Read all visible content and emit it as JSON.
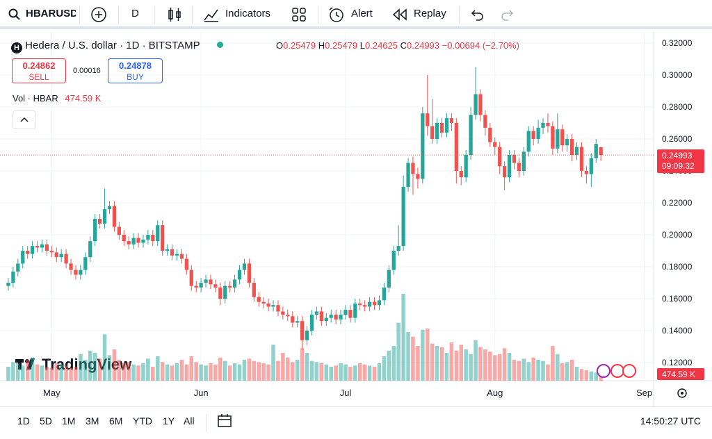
{
  "toolbar": {
    "symbol": "HBARUSD",
    "interval": "D",
    "indicators": "Indicators",
    "alert": "Alert",
    "replay": "Replay"
  },
  "legend": {
    "title": "Hedera / U.S. dollar · 1D · BITSTAMP",
    "o": "O",
    "h": "H",
    "l": "L",
    "c": "C",
    "change": "−0.00694 (−2.70%)"
  },
  "trade": {
    "sell_price": "0.24862",
    "sell": "SELL",
    "spread": "0.00016",
    "buy_price": "0.24878",
    "buy": "BUY"
  },
  "countdown": "09:09:32",
  "watermark": "TradingView",
  "ranges": [
    "1D",
    "5D",
    "1M",
    "3M",
    "6M",
    "YTD",
    "1Y",
    "All"
  ],
  "clock": "14:50:27 UTC",
  "chart_data": {
    "type": "candlestick",
    "up_color": "#26a69a",
    "down_color": "#ef5350",
    "grid": true,
    "ylim": [
      0.1087,
      0.3274
    ],
    "yticks": [
      {
        "value": 0.12,
        "label": "0.12000"
      },
      {
        "value": 0.14,
        "label": "0.14000"
      },
      {
        "value": 0.16,
        "label": "0.16000"
      },
      {
        "value": 0.18,
        "label": "0.18000"
      },
      {
        "value": 0.2,
        "label": "0.20000"
      },
      {
        "value": 0.22,
        "label": "0.22000"
      },
      {
        "value": 0.24,
        "label": "0.24000"
      },
      {
        "value": 0.26,
        "label": "0.26000"
      },
      {
        "value": 0.28,
        "label": "0.28000"
      },
      {
        "value": 0.3,
        "label": "0.30000"
      },
      {
        "value": 0.32,
        "label": "0.32000"
      }
    ],
    "categories": [
      null,
      null,
      null,
      null,
      null,
      null,
      null,
      null,
      null,
      "May",
      null,
      null,
      null,
      null,
      null,
      null,
      null,
      null,
      null,
      null,
      null,
      null,
      null,
      null,
      null,
      null,
      null,
      null,
      null,
      null,
      null,
      null,
      null,
      null,
      null,
      null,
      null,
      null,
      null,
      null,
      "Jun",
      null,
      null,
      null,
      null,
      null,
      null,
      null,
      null,
      null,
      null,
      null,
      null,
      null,
      null,
      null,
      null,
      null,
      null,
      null,
      null,
      null,
      null,
      null,
      null,
      null,
      null,
      null,
      null,
      null,
      "Jul",
      null,
      null,
      null,
      null,
      null,
      null,
      null,
      null,
      null,
      null,
      null,
      null,
      null,
      null,
      null,
      null,
      null,
      null,
      null,
      null,
      null,
      null,
      null,
      null,
      null,
      null,
      null,
      null,
      null,
      null,
      "Aug",
      null,
      null,
      null,
      null,
      null,
      null,
      null,
      null,
      null,
      null,
      null,
      null,
      null,
      null,
      null,
      null,
      null,
      null,
      null,
      null,
      null,
      null,
      null,
      null,
      null,
      null,
      null,
      null,
      null,
      null,
      "Sep"
    ],
    "open": [
      0.168,
      0.17,
      0.177,
      0.182,
      0.19,
      0.188,
      0.193,
      0.192,
      0.194,
      0.19,
      0.189,
      0.186,
      0.188,
      0.182,
      0.178,
      0.175,
      0.178,
      0.186,
      0.196,
      0.21,
      0.207,
      0.216,
      0.218,
      0.205,
      0.2,
      0.196,
      0.194,
      0.198,
      0.195,
      0.197,
      0.2,
      0.196,
      0.206,
      0.19,
      0.191,
      0.187,
      0.188,
      0.185,
      0.178,
      0.168,
      0.167,
      0.17,
      0.172,
      0.169,
      0.167,
      0.16,
      0.168,
      0.167,
      0.172,
      0.178,
      0.182,
      0.17,
      0.161,
      0.158,
      0.157,
      0.155,
      0.156,
      0.152,
      0.15,
      0.149,
      0.145,
      0.146,
      0.134,
      0.14,
      0.15,
      0.152,
      0.146,
      0.148,
      0.15,
      0.147,
      0.15,
      0.153,
      0.148,
      0.157,
      0.156,
      0.155,
      0.158,
      0.156,
      0.159,
      0.167,
      0.178,
      0.19,
      0.193,
      0.23,
      0.245,
      0.238,
      0.235,
      0.276,
      0.268,
      0.26,
      0.27,
      0.264,
      0.273,
      0.27,
      0.24,
      0.236,
      0.25,
      0.275,
      0.288,
      0.275,
      0.267,
      0.258,
      0.255,
      0.243,
      0.236,
      0.25,
      0.245,
      0.24,
      0.252,
      0.265,
      0.26,
      0.267,
      0.27,
      0.268,
      0.254,
      0.266,
      0.256,
      0.26,
      0.25,
      0.255,
      0.24,
      0.238,
      0.248,
      0.25479,
      null,
      null,
      null,
      null,
      null,
      null,
      null,
      null,
      null
    ],
    "high": [
      0.173,
      0.18,
      0.185,
      0.193,
      0.193,
      0.196,
      0.196,
      0.197,
      0.197,
      0.193,
      0.192,
      0.191,
      0.191,
      0.185,
      0.181,
      0.181,
      0.189,
      0.199,
      0.213,
      0.213,
      0.229,
      0.221,
      0.221,
      0.208,
      0.203,
      0.199,
      0.201,
      0.201,
      0.2,
      0.203,
      0.203,
      0.209,
      0.209,
      0.194,
      0.194,
      0.191,
      0.191,
      0.188,
      0.181,
      0.171,
      0.173,
      0.175,
      0.175,
      0.172,
      0.17,
      0.171,
      0.171,
      0.175,
      0.181,
      0.185,
      0.185,
      0.173,
      0.164,
      0.161,
      0.16,
      0.159,
      0.159,
      0.155,
      0.153,
      0.152,
      0.149,
      0.149,
      0.143,
      0.153,
      0.155,
      0.155,
      0.151,
      0.153,
      0.153,
      0.153,
      0.156,
      0.156,
      0.16,
      0.16,
      0.159,
      0.161,
      0.161,
      0.162,
      0.17,
      0.181,
      0.193,
      0.206,
      0.237,
      0.248,
      0.249,
      0.242,
      0.28,
      0.3,
      0.285,
      0.273,
      0.273,
      0.276,
      0.276,
      0.273,
      0.243,
      0.253,
      0.28,
      0.305,
      0.291,
      0.278,
      0.27,
      0.261,
      0.258,
      0.246,
      0.253,
      0.253,
      0.248,
      0.255,
      0.268,
      0.268,
      0.272,
      0.273,
      0.276,
      0.271,
      0.276,
      0.269,
      0.263,
      0.263,
      0.258,
      0.258,
      0.243,
      0.251,
      0.26,
      0.25479,
      null,
      null,
      null,
      null,
      null,
      null,
      null,
      null,
      null
    ],
    "low": [
      0.165,
      0.167,
      0.174,
      0.179,
      0.185,
      0.185,
      0.189,
      0.189,
      0.187,
      0.186,
      0.183,
      0.183,
      0.179,
      0.175,
      0.172,
      0.172,
      0.175,
      0.183,
      0.193,
      0.204,
      0.204,
      0.213,
      0.202,
      0.197,
      0.193,
      0.191,
      0.191,
      0.192,
      0.192,
      0.194,
      0.193,
      0.193,
      0.187,
      0.187,
      0.184,
      0.184,
      0.182,
      0.175,
      0.165,
      0.164,
      0.164,
      0.167,
      0.166,
      0.164,
      0.156,
      0.157,
      0.164,
      0.164,
      0.169,
      0.175,
      0.167,
      0.158,
      0.155,
      0.154,
      0.152,
      0.152,
      0.149,
      0.147,
      0.146,
      0.142,
      0.142,
      0.128,
      0.131,
      0.137,
      0.147,
      0.143,
      0.143,
      0.145,
      0.144,
      0.144,
      0.147,
      0.145,
      0.145,
      0.153,
      0.152,
      0.152,
      0.153,
      0.153,
      0.156,
      0.164,
      0.175,
      0.187,
      0.19,
      0.227,
      0.225,
      0.229,
      0.232,
      0.262,
      0.257,
      0.257,
      0.261,
      0.261,
      0.265,
      0.232,
      0.231,
      0.233,
      0.247,
      0.272,
      0.271,
      0.262,
      0.255,
      0.25,
      0.238,
      0.228,
      0.233,
      0.241,
      0.236,
      0.237,
      0.249,
      0.256,
      0.257,
      0.263,
      0.264,
      0.25,
      0.251,
      0.252,
      0.252,
      0.246,
      0.247,
      0.236,
      0.232,
      0.23,
      0.245,
      0.24625,
      null,
      null,
      null,
      null,
      null,
      null,
      null,
      null,
      null
    ],
    "close": [
      0.17,
      0.177,
      0.182,
      0.19,
      0.188,
      0.193,
      0.192,
      0.194,
      0.19,
      0.189,
      0.186,
      0.188,
      0.182,
      0.178,
      0.175,
      0.178,
      0.186,
      0.196,
      0.21,
      0.207,
      0.216,
      0.218,
      0.205,
      0.2,
      0.196,
      0.194,
      0.198,
      0.195,
      0.197,
      0.2,
      0.196,
      0.206,
      0.19,
      0.191,
      0.187,
      0.188,
      0.185,
      0.178,
      0.168,
      0.167,
      0.17,
      0.172,
      0.169,
      0.167,
      0.16,
      0.168,
      0.167,
      0.172,
      0.178,
      0.182,
      0.17,
      0.161,
      0.158,
      0.157,
      0.155,
      0.156,
      0.152,
      0.15,
      0.149,
      0.145,
      0.146,
      0.134,
      0.14,
      0.15,
      0.152,
      0.146,
      0.148,
      0.15,
      0.147,
      0.15,
      0.153,
      0.148,
      0.157,
      0.156,
      0.155,
      0.158,
      0.156,
      0.159,
      0.167,
      0.178,
      0.19,
      0.193,
      0.23,
      0.245,
      0.238,
      0.235,
      0.276,
      0.268,
      0.26,
      0.27,
      0.264,
      0.273,
      0.27,
      0.24,
      0.236,
      0.25,
      0.275,
      0.288,
      0.275,
      0.267,
      0.258,
      0.255,
      0.243,
      0.236,
      0.25,
      0.245,
      0.24,
      0.252,
      0.265,
      0.26,
      0.267,
      0.27,
      0.268,
      0.254,
      0.266,
      0.256,
      0.26,
      0.25,
      0.255,
      0.24,
      0.238,
      0.248,
      0.25687,
      0.24993,
      null,
      null,
      null,
      null,
      null,
      null,
      null,
      null,
      null
    ],
    "volume": {
      "name": "Vol · HBAR",
      "ylim": [
        0,
        9000
      ],
      "values": [
        1200,
        1600,
        1500,
        1300,
        1800,
        2000,
        1400,
        1300,
        1200,
        1100,
        1500,
        1400,
        1300,
        1100,
        1200,
        2300,
        1800,
        2600,
        2400,
        1900,
        4000,
        2200,
        2700,
        1800,
        1500,
        1600,
        1400,
        1300,
        1500,
        1900,
        1200,
        2100,
        1600,
        1400,
        1300,
        1500,
        1800,
        1400,
        2100,
        1600,
        1400,
        1300,
        1500,
        1400,
        2000,
        1700,
        1300,
        1500,
        1400,
        1800,
        1900,
        1700,
        1600,
        1500,
        1400,
        3100,
        1700,
        2400,
        2000,
        1600,
        1800,
        2800,
        2400,
        1700,
        1600,
        1500,
        1400,
        1200,
        1300,
        1500,
        1400,
        1200,
        1300,
        1500,
        1400,
        1300,
        1200,
        1500,
        2100,
        2600,
        3000,
        5000,
        7500,
        4200,
        3800,
        3000,
        4400,
        4500,
        3200,
        3000,
        2900,
        2400,
        3300,
        2600,
        3100,
        2700,
        2300,
        3500,
        2900,
        2700,
        2500,
        2200,
        2300,
        2800,
        2400,
        1800,
        1700,
        1900,
        1600,
        2000,
        1800,
        1700,
        1400,
        3000,
        2300,
        1500,
        1600,
        1800,
        1200,
        1000,
        900,
        800,
        700,
        474.59,
        null,
        null,
        null,
        null,
        null,
        null,
        null,
        null,
        null
      ],
      "last_label": "474.59 K"
    }
  }
}
